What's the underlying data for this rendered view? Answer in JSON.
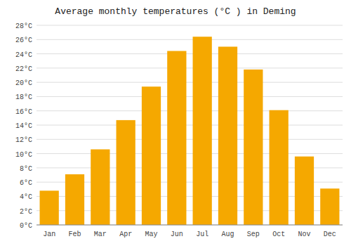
{
  "chart_data": {
    "type": "bar",
    "title": "Average monthly temperatures (°C ) in Deming",
    "categories": [
      "Jan",
      "Feb",
      "Mar",
      "Apr",
      "May",
      "Jun",
      "Jul",
      "Aug",
      "Sep",
      "Oct",
      "Nov",
      "Dec"
    ],
    "values": [
      4.8,
      7.1,
      10.6,
      14.7,
      19.4,
      24.4,
      26.4,
      25.0,
      21.8,
      16.1,
      9.6,
      5.1
    ],
    "color": "#F5A800",
    "ylim": [
      0,
      28
    ],
    "yticks": [
      {
        "value": 0,
        "label": "0°C"
      },
      {
        "value": 2,
        "label": "2°C"
      },
      {
        "value": 4,
        "label": "4°C"
      },
      {
        "value": 6,
        "label": "6°C"
      },
      {
        "value": 8,
        "label": "8°C"
      },
      {
        "value": 10,
        "label": "10°C"
      },
      {
        "value": 12,
        "label": "12°C"
      },
      {
        "value": 14,
        "label": "14°C"
      },
      {
        "value": 16,
        "label": "16°C"
      },
      {
        "value": 18,
        "label": "18°C"
      },
      {
        "value": 20,
        "label": "20°C"
      },
      {
        "value": 22,
        "label": "22°C"
      },
      {
        "value": 24,
        "label": "24°C"
      },
      {
        "value": 26,
        "label": "26°C"
      },
      {
        "value": 28,
        "label": "28°C"
      }
    ],
    "grid": true
  }
}
